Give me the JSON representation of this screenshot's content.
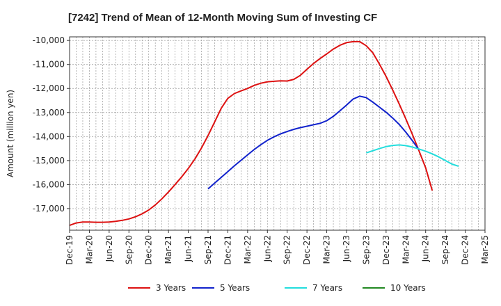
{
  "chart_data": {
    "type": "line",
    "title": "[7242]  Trend of Mean of 12-Month Moving Sum of Investing CF",
    "xlabel": "",
    "ylabel": "Amount (million yen)",
    "ylim": [
      -17900,
      -9850
    ],
    "yticks": [
      -10000,
      -11000,
      -12000,
      -13000,
      -14000,
      -15000,
      -16000,
      -17000
    ],
    "ytick_labels": [
      "-10,000",
      "-11,000",
      "-12,000",
      "-13,000",
      "-14,000",
      "-15,000",
      "-16,000",
      "-17,000"
    ],
    "x_start": "Dec-19",
    "x_end": "Mar-25",
    "xtick_labels": [
      "Dec-19",
      "Mar-20",
      "Jun-20",
      "Sep-20",
      "Dec-20",
      "Mar-21",
      "Jun-21",
      "Sep-21",
      "Dec-21",
      "Mar-22",
      "Jun-22",
      "Sep-22",
      "Dec-22",
      "Mar-23",
      "Jun-23",
      "Sep-23",
      "Dec-23",
      "Mar-24",
      "Jun-24",
      "Sep-24",
      "Dec-24",
      "Mar-25"
    ],
    "grid": true,
    "legend_position": "bottom",
    "series": [
      {
        "name": "3 Years",
        "color": "#dd1111",
        "start": "Dec-19",
        "values": [
          -17700,
          -17600,
          -17560,
          -17560,
          -17570,
          -17570,
          -17560,
          -17530,
          -17490,
          -17430,
          -17340,
          -17220,
          -17060,
          -16850,
          -16590,
          -16310,
          -16000,
          -15680,
          -15330,
          -14940,
          -14480,
          -13960,
          -13390,
          -12820,
          -12410,
          -12210,
          -12100,
          -12000,
          -11870,
          -11780,
          -11720,
          -11700,
          -11680,
          -11690,
          -11620,
          -11450,
          -11200,
          -10960,
          -10750,
          -10560,
          -10360,
          -10200,
          -10090,
          -10050,
          -10050,
          -10220,
          -10520,
          -10990,
          -11500,
          -12060,
          -12650,
          -13270,
          -13920,
          -14600,
          -15300,
          -16250
        ]
      },
      {
        "name": "5 Years",
        "color": "#1122cc",
        "start": "Sep-21",
        "values": [
          -16180,
          -15940,
          -15700,
          -15460,
          -15220,
          -14990,
          -14760,
          -14540,
          -14340,
          -14160,
          -14010,
          -13890,
          -13790,
          -13700,
          -13630,
          -13570,
          -13510,
          -13450,
          -13340,
          -13160,
          -12930,
          -12690,
          -12440,
          -12320,
          -12380,
          -12570,
          -12780,
          -12990,
          -13230,
          -13500,
          -13820,
          -14180,
          -14550
        ]
      },
      {
        "name": "7 Years",
        "color": "#22dddd",
        "start": "Sep-23",
        "values": [
          -14680,
          -14590,
          -14500,
          -14420,
          -14370,
          -14350,
          -14380,
          -14440,
          -14520,
          -14610,
          -14720,
          -14850,
          -15000,
          -15150,
          -15240
        ]
      },
      {
        "name": "10 Years",
        "color": "#228822",
        "start": "Dec-24",
        "values": []
      }
    ]
  }
}
